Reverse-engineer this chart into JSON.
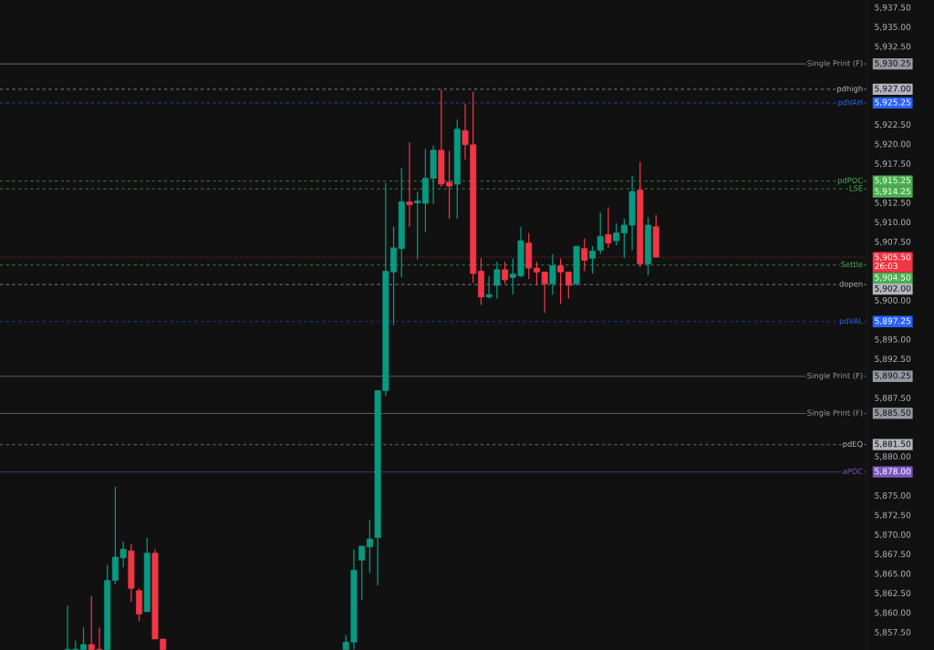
{
  "chart_data": {
    "type": "candlestick",
    "categories": [
      null,
      null,
      null,
      null,
      null,
      null,
      null,
      null,
      null,
      null,
      null,
      null,
      null,
      null,
      null,
      null,
      null,
      null,
      null,
      null,
      null,
      null,
      null,
      null,
      null,
      null,
      null,
      null,
      null,
      null,
      null,
      null,
      null,
      null,
      null,
      null,
      null,
      null,
      null,
      null,
      null,
      null,
      null,
      null,
      null,
      null,
      null,
      null,
      null,
      null,
      null,
      null,
      null,
      null,
      null,
      null,
      null,
      null,
      null,
      null,
      null,
      null,
      null,
      null,
      null,
      null,
      null,
      null,
      null,
      null,
      null,
      null,
      null,
      null,
      null,
      null,
      null,
      null,
      null,
      null,
      null,
      null,
      null,
      null,
      null,
      null,
      null,
      null,
      null,
      null,
      null,
      null,
      null,
      null,
      null,
      null,
      null,
      null,
      null,
      null,
      null,
      null,
      null,
      null,
      null,
      null,
      null,
      null,
      null
    ],
    "ohlc": [
      null,
      null,
      null,
      null,
      null,
      null,
      null,
      null,
      [
        5855.25,
        5860.9,
        5855.25,
        5855.3
      ],
      [
        5855.25,
        5856.4,
        5855.25,
        5855.3
      ],
      [
        5855.25,
        5858.1,
        5855.25,
        5855.9
      ],
      [
        5855.9,
        5862.1,
        5855.25,
        5855.25
      ],
      [
        5855.3,
        5858.1,
        5855.25,
        5855.25
      ],
      [
        5855.25,
        5866.1,
        5855.25,
        5864.1
      ],
      [
        5864.1,
        5876.1,
        5863.6,
        5867.1
      ],
      [
        5867.0,
        5869.1,
        5865.8,
        5868.1
      ],
      [
        5867.9,
        5868.8,
        5861.4,
        5863.1
      ],
      [
        5862.8,
        5863.1,
        5858.9,
        5859.8
      ],
      [
        5860.1,
        5869.6,
        5860.1,
        5867.6
      ],
      [
        5867.6,
        5868.1,
        5856.6,
        5856.6
      ],
      [
        5856.6,
        5856.6,
        5855.25,
        5855.25
      ],
      null,
      null,
      null,
      null,
      null,
      null,
      null,
      null,
      null,
      null,
      null,
      null,
      null,
      null,
      null,
      null,
      null,
      null,
      null,
      null,
      null,
      null,
      [
        5855.25,
        5857.1,
        5855.25,
        5856.2
      ],
      [
        5856.2,
        5868.1,
        5855.25,
        5865.4
      ],
      [
        5866.7,
        5868.5,
        5861.6,
        5868.5
      ],
      [
        5868.4,
        5871.9,
        5865.1,
        5869.4
      ],
      [
        5869.6,
        5888.5,
        5863.5,
        5888.4
      ],
      [
        5888.4,
        5915.0,
        5887.7,
        5903.7
      ],
      [
        5903.6,
        5909.4,
        5896.8,
        5906.7
      ],
      [
        5906.6,
        5916.9,
        5902.9,
        5912.6
      ],
      [
        5912.6,
        5920.2,
        5909.4,
        5912.2
      ],
      [
        5912.45,
        5913.9,
        5905.2,
        5912.7
      ],
      [
        5912.4,
        5919.35,
        5908.7,
        5915.6
      ],
      [
        5915.6,
        5919.8,
        5912.3,
        5919.2
      ],
      [
        5919.2,
        5926.9,
        5914.5,
        5914.85
      ],
      [
        5915.1,
        5919.1,
        5910.4,
        5914.6
      ],
      [
        5914.85,
        5923.15,
        5910.4,
        5921.9
      ],
      [
        5921.7,
        5925.15,
        5918.0,
        5919.9
      ],
      [
        5919.9,
        5926.7,
        5902.2,
        5903.4
      ],
      [
        5903.7,
        5905.4,
        5899.4,
        5900.4
      ],
      [
        5900.4,
        5903.1,
        5900.2,
        5900.7
      ],
      [
        5901.9,
        5904.9,
        5900.2,
        5903.9
      ],
      [
        5903.9,
        5904.9,
        5902.15,
        5902.6
      ],
      [
        5902.9,
        5905.35,
        5900.7,
        5903.35
      ],
      [
        5903.1,
        5909.4,
        5902.9,
        5907.6
      ],
      [
        5907.3,
        5908.6,
        5902.7,
        5904.1
      ],
      [
        5904.1,
        5904.9,
        5901.9,
        5903.6
      ],
      [
        5903.6,
        5903.6,
        5898.4,
        5902.1
      ],
      [
        5902.1,
        5905.9,
        5900.7,
        5904.4
      ],
      [
        5904.4,
        5905.35,
        5899.5,
        5903.6
      ],
      [
        5903.6,
        5903.6,
        5900.2,
        5901.9
      ],
      [
        5902.1,
        5906.9,
        5901.85,
        5906.9
      ],
      [
        5906.6,
        5907.9,
        5903.7,
        5905.1
      ],
      [
        5905.35,
        5906.9,
        5903.4,
        5906.3
      ],
      [
        5906.4,
        5911.2,
        5905.9,
        5908.15
      ],
      [
        5908.4,
        5911.9,
        5906.7,
        5907.3
      ],
      [
        5907.6,
        5909.8,
        5907.0,
        5908.6
      ],
      [
        5908.6,
        5910.4,
        5905.4,
        5909.6
      ],
      [
        5909.6,
        5915.9,
        5906.4,
        5913.9
      ],
      [
        5914.1,
        5917.7,
        5904.2,
        5904.65
      ],
      [
        5904.65,
        5910.6,
        5903.2,
        5909.6
      ],
      [
        5909.4,
        5910.9,
        5905.5,
        5905.5
      ],
      null,
      null,
      null,
      null,
      null,
      null,
      null,
      null,
      null,
      null,
      null,
      null,
      null,
      null,
      null,
      null,
      null,
      null,
      null,
      null,
      null,
      null,
      null,
      null,
      null,
      null
    ],
    "ylim": [
      5855.2,
      5938.43
    ],
    "yticks": [
      {
        "value": 5937.5,
        "label": "5,937.50"
      },
      {
        "value": 5935,
        "label": "5,935.00"
      },
      {
        "value": 5932.5,
        "label": "5,932.50"
      },
      {
        "value": 5922.5,
        "label": "5,922.50"
      },
      {
        "value": 5920,
        "label": "5,920.00"
      },
      {
        "value": 5917.5,
        "label": "5,917.50"
      },
      {
        "value": 5912.5,
        "label": "5,912.50"
      },
      {
        "value": 5910,
        "label": "5,910.00"
      },
      {
        "value": 5907.5,
        "label": "5,907.50"
      },
      {
        "value": 5900,
        "label": "5,900.00"
      },
      {
        "value": 5895,
        "label": "5,895.00"
      },
      {
        "value": 5892.5,
        "label": "5,892.50"
      },
      {
        "value": 5887.5,
        "label": "5,887.50"
      },
      {
        "value": 5880,
        "label": "5,880.00"
      },
      {
        "value": 5875,
        "label": "5,875.00"
      },
      {
        "value": 5872.5,
        "label": "5,872.50"
      },
      {
        "value": 5870,
        "label": "5,870.00"
      },
      {
        "value": 5867.5,
        "label": "5,867.50"
      },
      {
        "value": 5865,
        "label": "5,865.00"
      },
      {
        "value": 5862.5,
        "label": "5,862.50"
      },
      {
        "value": 5860,
        "label": "5,860.00"
      },
      {
        "value": 5857.5,
        "label": "5,857.50"
      }
    ],
    "tick_labels": "y",
    "grid": false,
    "ref_lines": [
      {
        "axis": "y",
        "value": 5930.25,
        "label": "Single Print (F)",
        "color": "#9598a1",
        "line_style": "solid"
      },
      {
        "axis": "y",
        "value": 5927.0,
        "label": "pdhigh",
        "color": "#b2b5be",
        "line_style": "dashed"
      },
      {
        "axis": "y",
        "value": 5925.25,
        "label": "pdVAH",
        "color": "#2962ff",
        "line_style": "dashed"
      },
      {
        "axis": "y",
        "value": 5915.25,
        "label": "pdPOC",
        "color": "#4caf50",
        "line_style": "dashed"
      },
      {
        "axis": "y",
        "value": 5914.25,
        "label": "LSE",
        "color": "#4caf50",
        "line_style": "dashed"
      },
      {
        "axis": "y",
        "value": 5905.5,
        "color": "#f23645",
        "line_style": "dotted"
      },
      {
        "axis": "y",
        "value": 5904.5,
        "label": "Settle",
        "color": "#4caf50",
        "line_style": "dashed"
      },
      {
        "axis": "y",
        "value": 5902.0,
        "label": "dopen",
        "color": "#b2b5be",
        "line_style": "dashed"
      },
      {
        "axis": "y",
        "value": 5897.25,
        "label": "pdVAL",
        "color": "#2962ff",
        "line_style": "dashed"
      },
      {
        "axis": "y",
        "value": 5890.25,
        "label": "Single Print (F)",
        "color": "#9598a1",
        "line_style": "solid"
      },
      {
        "axis": "y",
        "value": 5885.5,
        "label": "Single Print (F)",
        "color": "#9598a1",
        "line_style": "solid"
      },
      {
        "axis": "y",
        "value": 5881.5,
        "label": "pdEQ",
        "color": "#b2b5be",
        "line_style": "dashed"
      },
      {
        "axis": "y",
        "value": 5878.0,
        "label": "aPOC",
        "color": "#7e57c2",
        "line_style": "solid"
      }
    ],
    "annotations": [
      "5,930.25",
      "5,927.00",
      "5,925.25",
      "5,915.25",
      "5,914.25",
      "5,905.50\n26:03",
      "5,904.50",
      "5,902.00",
      "5,897.25",
      "5,890.25",
      "5,885.50",
      "5,881.50",
      "5,878.00"
    ]
  }
}
